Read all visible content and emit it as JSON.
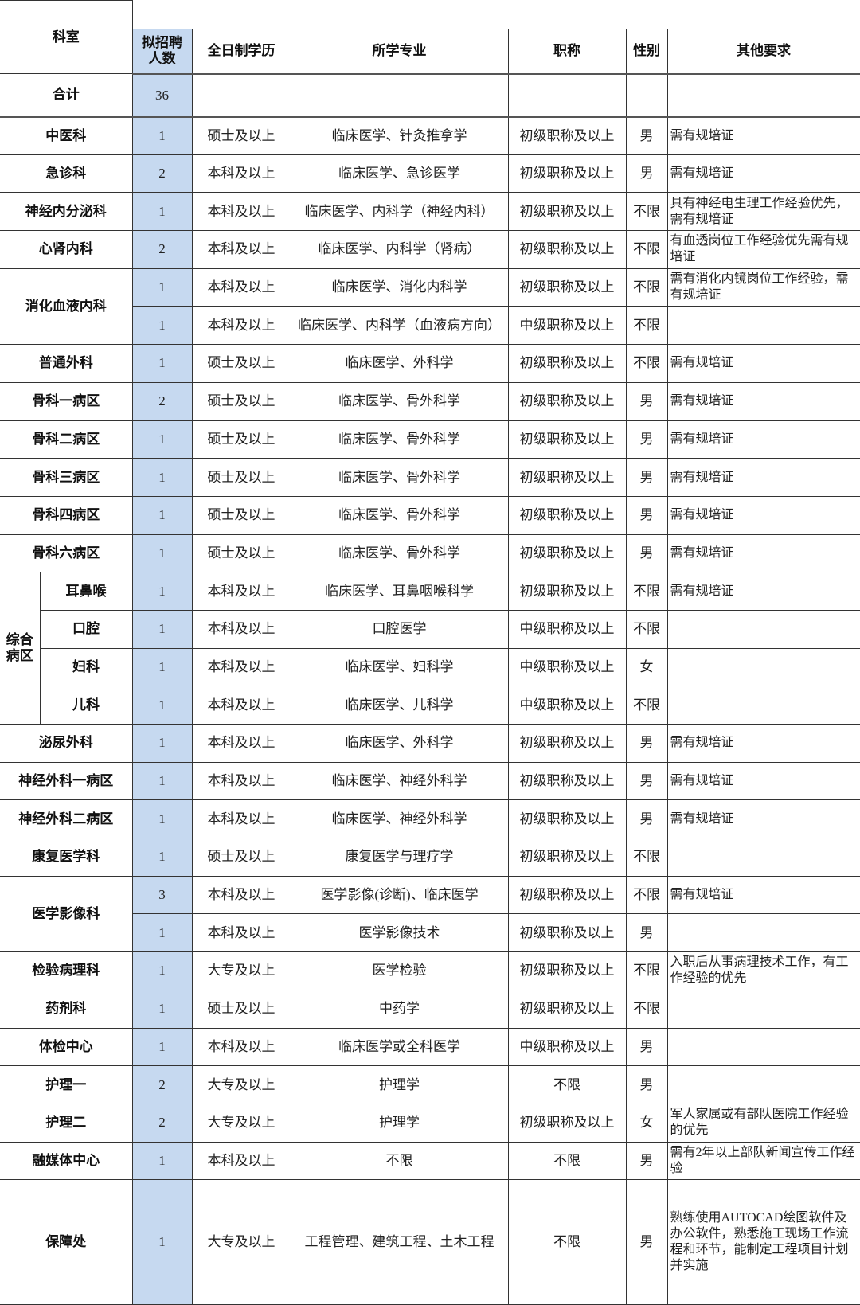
{
  "headers": {
    "department": "科室",
    "count": "拟招聘人数",
    "education": "全日制学历",
    "major": "所学专业",
    "title": "职称",
    "gender": "性别",
    "other": "其他要求"
  },
  "total": {
    "label": "合计",
    "count": "36"
  },
  "colors": {
    "count_column": "#c6d9f0",
    "border": "#333333"
  },
  "groups": [
    {
      "dept": "中医科",
      "positions": [
        {
          "count": "1",
          "education": "硕士及以上",
          "major": "临床医学、针灸推拿学",
          "title": "初级职称及以上",
          "gender": "男",
          "other": "需有规培证"
        }
      ]
    },
    {
      "dept": "急诊科",
      "positions": [
        {
          "count": "2",
          "education": "本科及以上",
          "major": "临床医学、急诊医学",
          "title": "初级职称及以上",
          "gender": "男",
          "other": "需有规培证"
        }
      ]
    },
    {
      "dept": "神经内分泌科",
      "positions": [
        {
          "count": "1",
          "education": "本科及以上",
          "major": "临床医学、内科学（神经内科）",
          "title": "初级职称及以上",
          "gender": "不限",
          "other": "具有神经电生理工作经验优先，需有规培证"
        }
      ]
    },
    {
      "dept": "心肾内科",
      "positions": [
        {
          "count": "2",
          "education": "本科及以上",
          "major": "临床医学、内科学（肾病）",
          "title": "初级职称及以上",
          "gender": "不限",
          "other": "有血透岗位工作经验优先需有规培证"
        }
      ]
    },
    {
      "dept": "消化血液内科",
      "positions": [
        {
          "count": "1",
          "education": "本科及以上",
          "major": "临床医学、消化内科学",
          "title": "初级职称及以上",
          "gender": "不限",
          "other": "需有消化内镜岗位工作经验，需有规培证"
        },
        {
          "count": "1",
          "education": "本科及以上",
          "major": "临床医学、内科学（血液病方向）",
          "title": "中级职称及以上",
          "gender": "不限",
          "other": ""
        }
      ]
    },
    {
      "dept": "普通外科",
      "positions": [
        {
          "count": "1",
          "education": "硕士及以上",
          "major": "临床医学、外科学",
          "title": "初级职称及以上",
          "gender": "不限",
          "other": "需有规培证"
        }
      ]
    },
    {
      "dept": "骨科一病区",
      "positions": [
        {
          "count": "2",
          "education": "硕士及以上",
          "major": "临床医学、骨外科学",
          "title": "初级职称及以上",
          "gender": "男",
          "other": "需有规培证"
        }
      ]
    },
    {
      "dept": "骨科二病区",
      "positions": [
        {
          "count": "1",
          "education": "硕士及以上",
          "major": "临床医学、骨外科学",
          "title": "初级职称及以上",
          "gender": "男",
          "other": "需有规培证"
        }
      ]
    },
    {
      "dept": "骨科三病区",
      "positions": [
        {
          "count": "1",
          "education": "硕士及以上",
          "major": "临床医学、骨外科学",
          "title": "初级职称及以上",
          "gender": "男",
          "other": "需有规培证"
        }
      ]
    },
    {
      "dept": "骨科四病区",
      "positions": [
        {
          "count": "1",
          "education": "硕士及以上",
          "major": "临床医学、骨外科学",
          "title": "初级职称及以上",
          "gender": "男",
          "other": "需有规培证"
        }
      ]
    },
    {
      "dept": "骨科六病区",
      "positions": [
        {
          "count": "1",
          "education": "硕士及以上",
          "major": "临床医学、骨外科学",
          "title": "初级职称及以上",
          "gender": "男",
          "other": "需有规培证"
        }
      ]
    },
    {
      "dept": "综合病区",
      "subunits": [
        {
          "name": "耳鼻喉",
          "count": "1",
          "education": "本科及以上",
          "major": "临床医学、耳鼻咽喉科学",
          "title": "初级职称及以上",
          "gender": "不限",
          "other": "需有规培证"
        },
        {
          "name": "口腔",
          "count": "1",
          "education": "本科及以上",
          "major": "口腔医学",
          "title": "中级职称及以上",
          "gender": "不限",
          "other": ""
        },
        {
          "name": "妇科",
          "count": "1",
          "education": "本科及以上",
          "major": "临床医学、妇科学",
          "title": "中级职称及以上",
          "gender": "女",
          "other": ""
        },
        {
          "name": "儿科",
          "count": "1",
          "education": "本科及以上",
          "major": "临床医学、儿科学",
          "title": "中级职称及以上",
          "gender": "不限",
          "other": ""
        }
      ]
    },
    {
      "dept": "泌尿外科",
      "positions": [
        {
          "count": "1",
          "education": "本科及以上",
          "major": "临床医学、外科学",
          "title": "初级职称及以上",
          "gender": "男",
          "other": "需有规培证"
        }
      ]
    },
    {
      "dept": "神经外科一病区",
      "positions": [
        {
          "count": "1",
          "education": "本科及以上",
          "major": "临床医学、神经外科学",
          "title": "初级职称及以上",
          "gender": "男",
          "other": "需有规培证"
        }
      ]
    },
    {
      "dept": "神经外科二病区",
      "positions": [
        {
          "count": "1",
          "education": "本科及以上",
          "major": "临床医学、神经外科学",
          "title": "初级职称及以上",
          "gender": "男",
          "other": "需有规培证"
        }
      ]
    },
    {
      "dept": "康复医学科",
      "positions": [
        {
          "count": "1",
          "education": "硕士及以上",
          "major": "康复医学与理疗学",
          "title": "初级职称及以上",
          "gender": "不限",
          "other": ""
        }
      ]
    },
    {
      "dept": "医学影像科",
      "positions": [
        {
          "count": "3",
          "education": "本科及以上",
          "major": "医学影像(诊断)、临床医学",
          "title": "初级职称及以上",
          "gender": "不限",
          "other": "需有规培证"
        },
        {
          "count": "1",
          "education": "本科及以上",
          "major": "医学影像技术",
          "title": "初级职称及以上",
          "gender": "男",
          "other": ""
        }
      ]
    },
    {
      "dept": "检验病理科",
      "positions": [
        {
          "count": "1",
          "education": "大专及以上",
          "major": "医学检验",
          "title": "初级职称及以上",
          "gender": "不限",
          "other": "入职后从事病理技术工作，有工作经验的优先"
        }
      ]
    },
    {
      "dept": "药剂科",
      "positions": [
        {
          "count": "1",
          "education": "硕士及以上",
          "major": "中药学",
          "title": "初级职称及以上",
          "gender": "不限",
          "other": ""
        }
      ]
    },
    {
      "dept": "体检中心",
      "positions": [
        {
          "count": "1",
          "education": "本科及以上",
          "major": "临床医学或全科医学",
          "title": "中级职称及以上",
          "gender": "男",
          "other": ""
        }
      ]
    },
    {
      "dept": "护理一",
      "positions": [
        {
          "count": "2",
          "education": "大专及以上",
          "major": "护理学",
          "title": "不限",
          "gender": "男",
          "other": ""
        }
      ]
    },
    {
      "dept": "护理二",
      "positions": [
        {
          "count": "2",
          "education": "大专及以上",
          "major": "护理学",
          "title": "初级职称及以上",
          "gender": "女",
          "other": "军人家属或有部队医院工作经验的优先"
        }
      ]
    },
    {
      "dept": "融媒体中心",
      "positions": [
        {
          "count": "1",
          "education": "本科及以上",
          "major": "不限",
          "title": "不限",
          "gender": "男",
          "other": "需有2年以上部队新闻宣传工作经验"
        }
      ]
    },
    {
      "dept": "保障处",
      "positions": [
        {
          "count": "1",
          "education": "大专及以上",
          "major": "工程管理、建筑工程、土木工程",
          "title": "不限",
          "gender": "男",
          "other": "熟练使用AUTOCAD绘图软件及办公软件，熟悉施工现场工作流程和环节，能制定工程项目计划并实施"
        }
      ]
    }
  ]
}
